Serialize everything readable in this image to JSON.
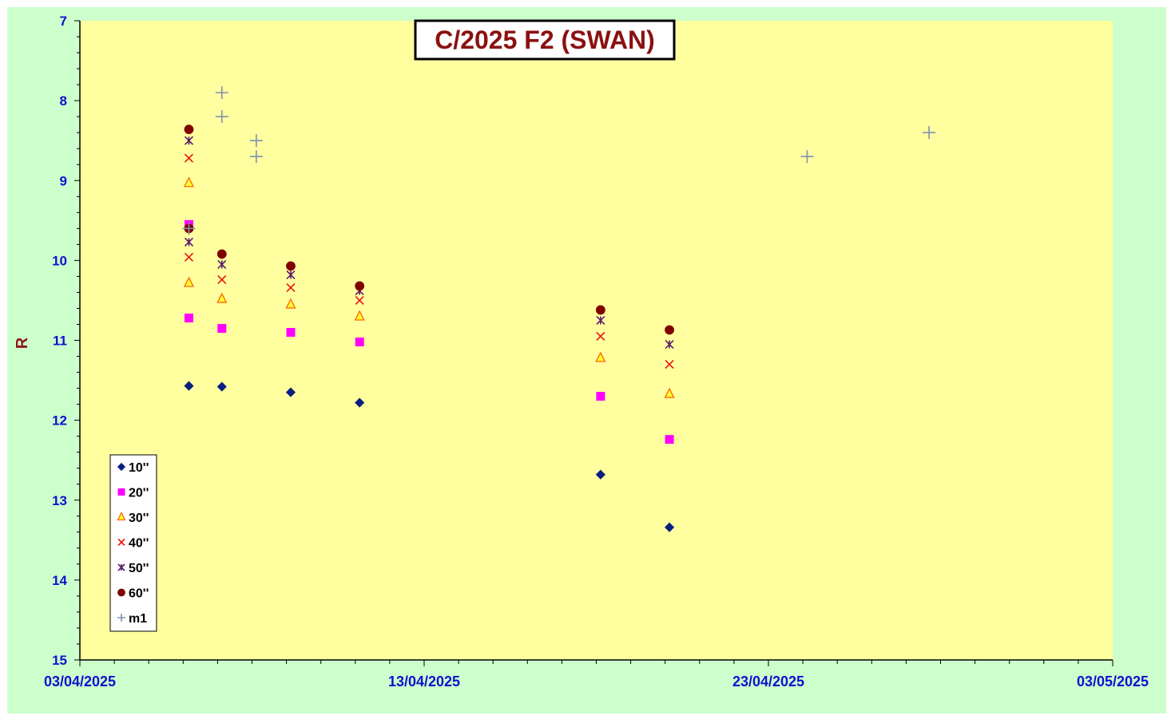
{
  "chart_data": {
    "type": "scatter",
    "title": "C/2025 F2 (SWAN)",
    "xlabel": "",
    "ylabel": "R",
    "y_inverted": true,
    "ylim": [
      7,
      15
    ],
    "yticks": [
      "7",
      "8",
      "9",
      "10",
      "11",
      "12",
      "13",
      "14",
      "15"
    ],
    "xlim": [
      "2025-04-03",
      "2025-05-03"
    ],
    "xticks": [
      "03/04/2025",
      "13/04/2025",
      "23/04/2025",
      "03/05/2025"
    ],
    "grid": false,
    "legend_position": "bottom-left",
    "colors": {
      "plot_bg": "#ffffa0",
      "outer_bg": "#ccffcc",
      "axis": "#000000",
      "tick_label": "#1010d0",
      "title": "#8b1010"
    },
    "series": [
      {
        "name": "10''",
        "marker": "diamond",
        "color": "#0a1f80",
        "x": [
          "2025-04-06 04:00",
          "2025-04-07 03:00",
          "2025-04-09 03:00",
          "2025-04-11 03:00",
          "2025-04-18 03:00",
          "2025-04-20 03:00"
        ],
        "y": [
          11.57,
          11.58,
          11.65,
          11.78,
          12.68,
          13.34
        ]
      },
      {
        "name": "20''",
        "marker": "square",
        "color": "#ff00ff",
        "x": [
          "2025-04-06 04:00",
          "2025-04-06 04:00",
          "2025-04-07 03:00",
          "2025-04-09 03:00",
          "2025-04-11 03:00",
          "2025-04-18 03:00",
          "2025-04-20 03:00"
        ],
        "y": [
          9.55,
          10.72,
          10.85,
          10.9,
          11.02,
          11.7,
          12.24
        ]
      },
      {
        "name": "30''",
        "marker": "triangle",
        "color": "#ff6600",
        "x": [
          "2025-04-06 04:00",
          "2025-04-06 04:00",
          "2025-04-07 03:00",
          "2025-04-09 03:00",
          "2025-04-11 03:00",
          "2025-04-18 03:00",
          "2025-04-20 03:00"
        ],
        "y": [
          9.03,
          10.28,
          10.48,
          10.55,
          10.7,
          11.22,
          11.67
        ]
      },
      {
        "name": "40''",
        "marker": "x",
        "color": "#ee1111",
        "x": [
          "2025-04-06 04:00",
          "2025-04-06 04:00",
          "2025-04-07 03:00",
          "2025-04-09 03:00",
          "2025-04-11 03:00",
          "2025-04-18 03:00",
          "2025-04-20 03:00"
        ],
        "y": [
          8.72,
          9.96,
          10.24,
          10.34,
          10.5,
          10.95,
          11.3
        ]
      },
      {
        "name": "50''",
        "marker": "star",
        "color": "#5a1a6a",
        "x": [
          "2025-04-06 04:00",
          "2025-04-06 04:00",
          "2025-04-07 03:00",
          "2025-04-09 03:00",
          "2025-04-11 03:00",
          "2025-04-18 03:00",
          "2025-04-20 03:00"
        ],
        "y": [
          8.5,
          9.77,
          10.05,
          10.18,
          10.38,
          10.75,
          11.05
        ]
      },
      {
        "name": "60''",
        "marker": "circle",
        "color": "#800000",
        "x": [
          "2025-04-06 04:00",
          "2025-04-06 04:00",
          "2025-04-07 03:00",
          "2025-04-09 03:00",
          "2025-04-11 03:00",
          "2025-04-18 03:00",
          "2025-04-20 03:00"
        ],
        "y": [
          8.36,
          9.6,
          9.92,
          10.07,
          10.32,
          10.62,
          10.87
        ]
      },
      {
        "name": "m1",
        "marker": "plus",
        "color": "#8090b0",
        "x": [
          "2025-04-06 04:00",
          "2025-04-07 03:00",
          "2025-04-07 03:00",
          "2025-04-08 03:00",
          "2025-04-08 03:00",
          "2025-04-24 03:00",
          "2025-04-27 16:00"
        ],
        "y": [
          9.6,
          7.9,
          8.2,
          8.5,
          8.7,
          8.7,
          8.4
        ]
      }
    ]
  }
}
